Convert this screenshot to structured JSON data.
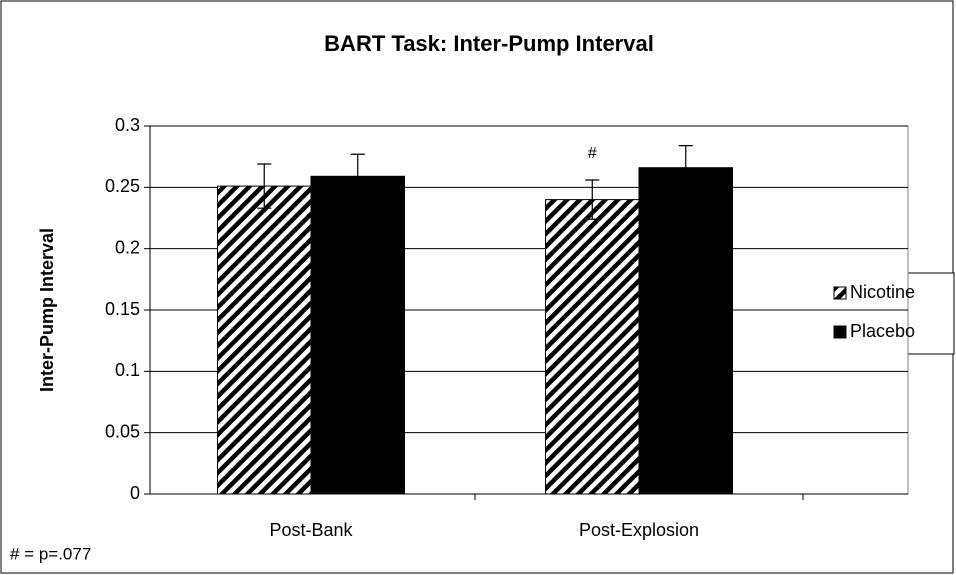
{
  "chart_data": {
    "type": "bar",
    "title": "BART Task: Inter-Pump Interval",
    "y_label": "Inter-Pump Interval",
    "categories": [
      "Post-Bank",
      "Post-Explosion"
    ],
    "series": [
      {
        "name": "Nicotine",
        "color": "#000000",
        "hatch": true,
        "values": [
          0.251,
          0.24
        ],
        "errors": [
          0.018,
          0.016
        ]
      },
      {
        "name": "Placebo",
        "color": "#000000",
        "hatch": false,
        "values": [
          0.259,
          0.266
        ],
        "errors": [
          0.018,
          0.018
        ]
      }
    ],
    "ylim": [
      0,
      0.3
    ],
    "yticks": [
      0,
      0.05,
      0.1,
      0.15,
      0.2,
      0.25,
      0.3
    ],
    "grid": true,
    "legend": "right",
    "annotations": [
      {
        "text": "#"
      }
    ],
    "footnote": "# = p=.077"
  }
}
